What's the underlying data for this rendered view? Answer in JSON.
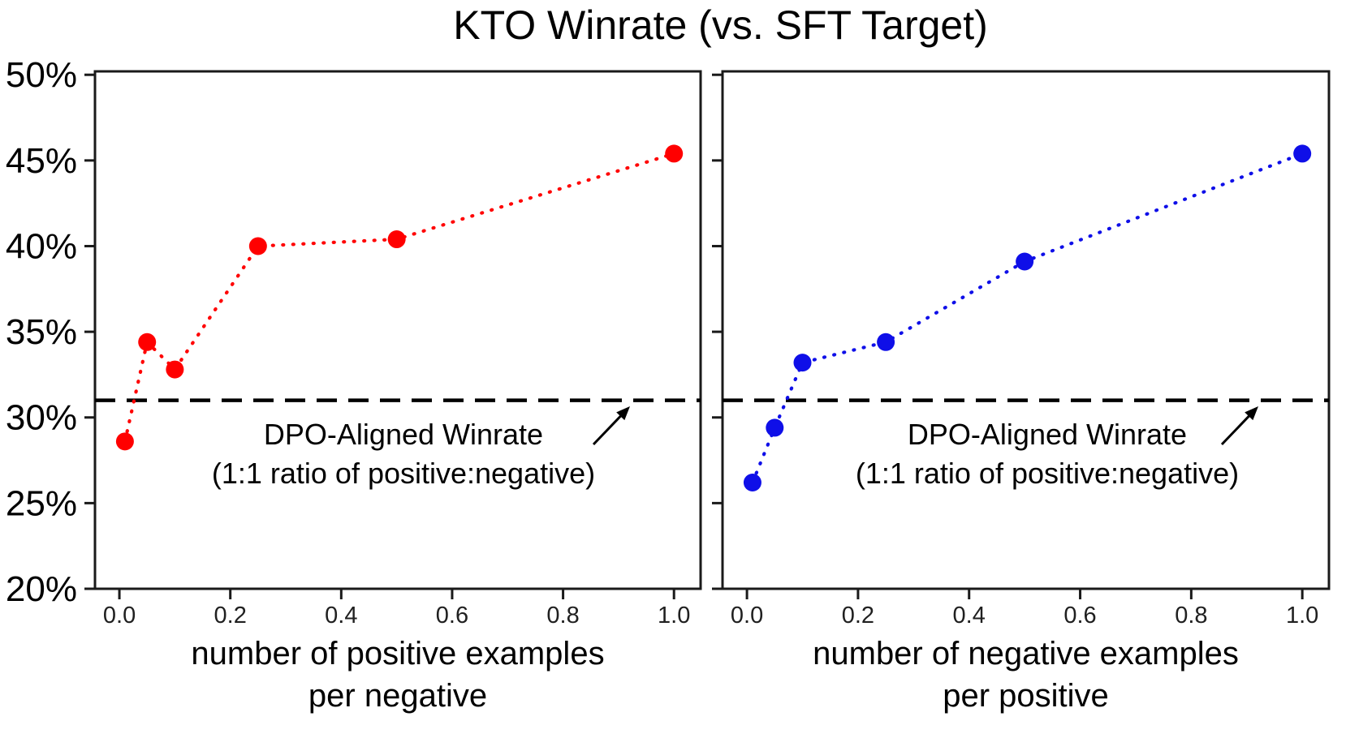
{
  "figure": {
    "background": "#ffffff"
  },
  "chart_data": {
    "type": "scatter",
    "title": "KTO Winrate (vs. SFT Target)",
    "grid": false,
    "legend": "none",
    "ylim": [
      20,
      50.2
    ],
    "xlim": [
      -0.044,
      1.048
    ],
    "yticks": [
      "50%",
      "45%",
      "40%",
      "35%",
      "30%",
      "25%",
      "20%"
    ],
    "xticks": [
      "0.0",
      "0.2",
      "0.4",
      "0.6",
      "0.8",
      "1.0"
    ],
    "reference_line": {
      "y_percent": 31.0,
      "style": "dashed",
      "color": "#000000",
      "label_line1": "DPO-Aligned Winrate",
      "label_line2": "(1:1 ratio of positive:negative)"
    },
    "panels": [
      {
        "name": "left",
        "xlabel_line1": "number of positive examples",
        "xlabel_line2": "per negative",
        "series": {
          "color": "#ff0000",
          "marker": "circle",
          "line_style": "dotted",
          "x": [
            0.01,
            0.05,
            0.1,
            0.25,
            0.5,
            1.0
          ],
          "y_percent": [
            28.6,
            34.4,
            32.8,
            40.0,
            40.4,
            45.4
          ]
        }
      },
      {
        "name": "right",
        "xlabel_line1": "number of negative examples",
        "xlabel_line2": "per positive",
        "series": {
          "color": "#0f0fe8",
          "marker": "circle",
          "line_style": "dotted",
          "x": [
            0.01,
            0.05,
            0.1,
            0.25,
            0.5,
            1.0
          ],
          "y_percent": [
            26.2,
            29.4,
            33.2,
            34.4,
            39.1,
            45.4
          ]
        }
      }
    ]
  }
}
